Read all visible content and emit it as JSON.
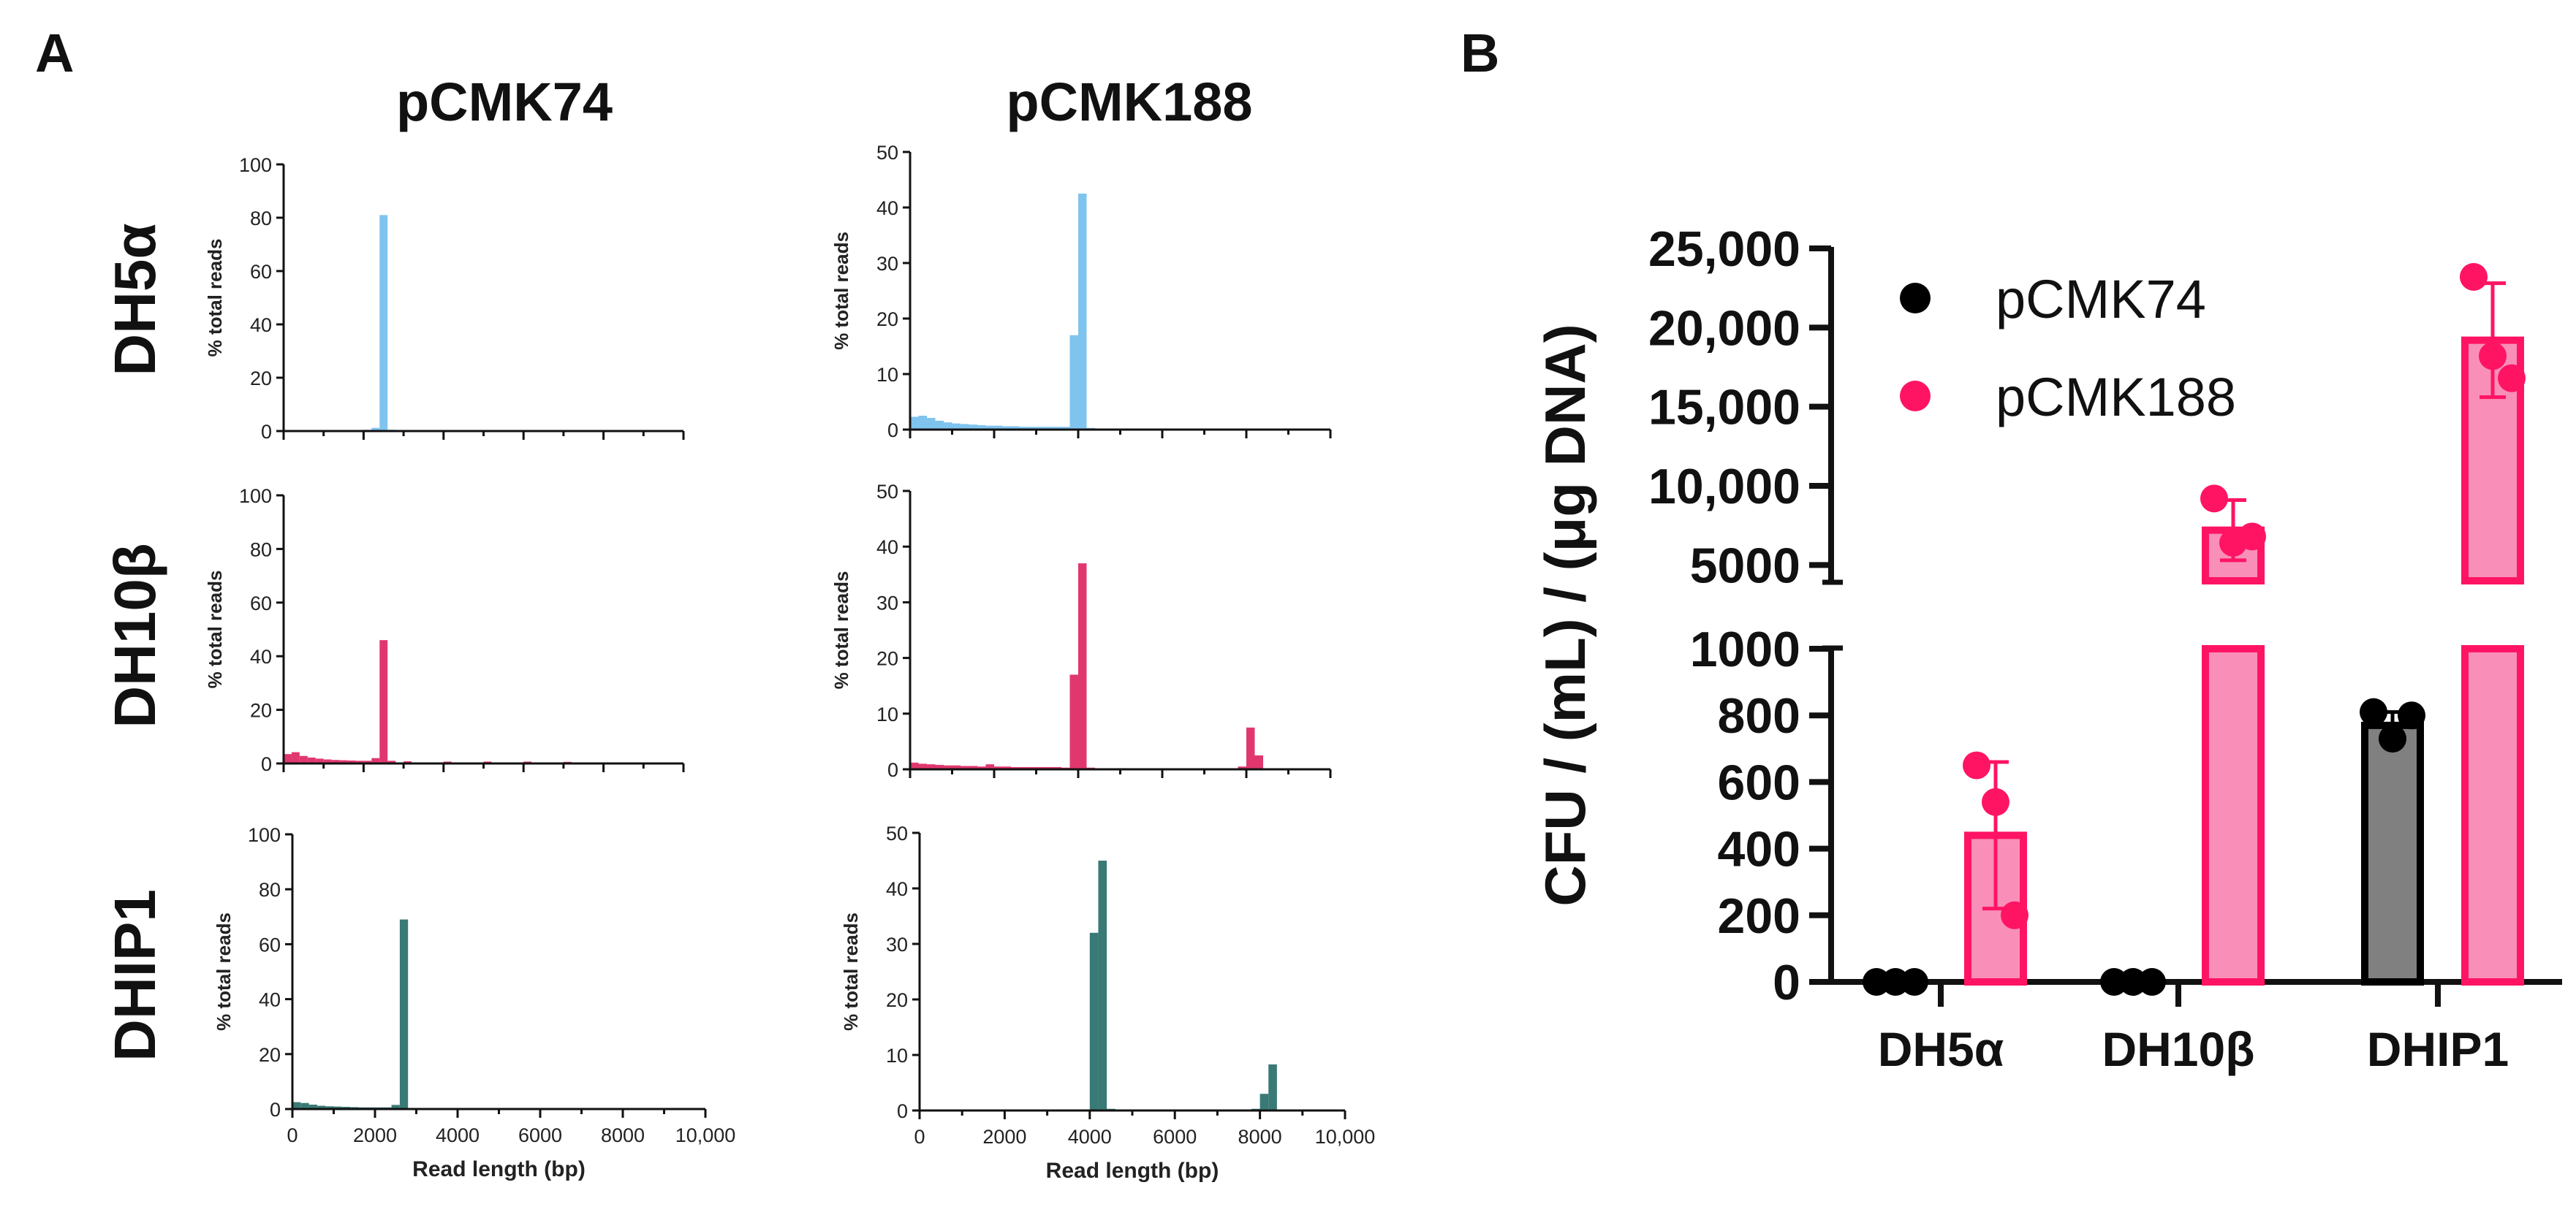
{
  "panels": {
    "a_letter": "A",
    "b_letter": "B"
  },
  "colors": {
    "dh5a": "#7fc4ee",
    "dh10b": "#e0386e",
    "dhip1": "#3a7a76",
    "pcmk74_bar": "#808080",
    "pcmk74_point": "#000000",
    "pcmk188_bar": "#f98fb8",
    "pcmk188_point": "#ff1464",
    "axis": "#111111"
  },
  "histograms": {
    "column_titles": [
      "pCMK74",
      "pCMK188"
    ],
    "row_labels": [
      "DH5α",
      "DH10β",
      "DHIP1"
    ],
    "y_axis_label": "% total reads",
    "x_axis_label": "Read length (bp)",
    "x_tick_labels": [
      "0",
      "2000",
      "4000",
      "6000",
      "8000",
      "10,000"
    ]
  },
  "chart_data": [
    {
      "type": "bar",
      "id": "DH5a-pCMK74",
      "row": "DH5α",
      "plasmid": "pCMK74",
      "color_key": "dh5a",
      "xlim": [
        0,
        10000
      ],
      "ylim": [
        0,
        100
      ],
      "y_ticks": [
        0,
        20,
        40,
        60,
        80,
        100
      ],
      "xlabel": "",
      "ylabel": "% total reads",
      "bin_width": 200,
      "x": [
        0,
        200,
        400,
        600,
        800,
        1000,
        1200,
        1400,
        1600,
        1800,
        2000,
        2200,
        2400,
        2600,
        3000,
        4000,
        5000,
        6000,
        7000,
        8000
      ],
      "values": [
        0.3,
        0.3,
        0.2,
        0.2,
        0.2,
        0.2,
        0.2,
        0.2,
        0.2,
        0.3,
        0.5,
        1.2,
        81,
        0.5,
        0.3,
        0.2,
        0.2,
        0.2,
        0.1,
        0
      ]
    },
    {
      "type": "bar",
      "id": "DH5a-pCMK188",
      "row": "DH5α",
      "plasmid": "pCMK188",
      "color_key": "dh5a",
      "xlim": [
        0,
        10000
      ],
      "ylim": [
        0,
        50
      ],
      "y_ticks": [
        0,
        10,
        20,
        30,
        40,
        50
      ],
      "xlabel": "",
      "ylabel": "% total reads",
      "bin_width": 200,
      "x": [
        0,
        200,
        400,
        600,
        800,
        1000,
        1200,
        1400,
        1600,
        1800,
        2000,
        2200,
        2400,
        2600,
        2800,
        3000,
        3200,
        3400,
        3600,
        3800,
        4000,
        4200,
        5000,
        6000,
        7000,
        8000,
        9000
      ],
      "values": [
        2.3,
        2.5,
        2.1,
        1.6,
        1.3,
        1.1,
        1.0,
        0.9,
        0.8,
        0.7,
        0.7,
        0.6,
        0.6,
        0.5,
        0.5,
        0.5,
        0.5,
        0.5,
        0.5,
        17,
        42.5,
        0.3,
        0.2,
        0.2,
        0.2,
        0.1,
        0.1
      ]
    },
    {
      "type": "bar",
      "id": "DH10b-pCMK74",
      "row": "DH10β",
      "plasmid": "pCMK74",
      "color_key": "dh10b",
      "xlim": [
        0,
        10000
      ],
      "ylim": [
        0,
        100
      ],
      "y_ticks": [
        0,
        20,
        40,
        60,
        80,
        100
      ],
      "xlabel": "",
      "ylabel": "% total reads",
      "bin_width": 200,
      "x": [
        0,
        200,
        400,
        600,
        800,
        1000,
        1200,
        1400,
        1600,
        1800,
        2000,
        2200,
        2400,
        2600,
        3000,
        4000,
        5000,
        6000,
        7000,
        8000
      ],
      "values": [
        3.5,
        4.2,
        2.8,
        2.2,
        1.8,
        1.5,
        1.3,
        1.2,
        1.1,
        1.0,
        1.0,
        2.0,
        46,
        1.0,
        0.8,
        0.7,
        0.7,
        0.7,
        0.6,
        0.3
      ]
    },
    {
      "type": "bar",
      "id": "DH10b-pCMK188",
      "row": "DH10β",
      "plasmid": "pCMK188",
      "color_key": "dh10b",
      "xlim": [
        0,
        10000
      ],
      "ylim": [
        0,
        50
      ],
      "y_ticks": [
        0,
        10,
        20,
        30,
        40,
        50
      ],
      "xlabel": "",
      "ylabel": "% total reads",
      "bin_width": 200,
      "x": [
        0,
        200,
        400,
        600,
        800,
        1000,
        1200,
        1400,
        1600,
        1800,
        2000,
        2200,
        2400,
        2600,
        2800,
        3000,
        3200,
        3400,
        3600,
        3800,
        4000,
        4200,
        5000,
        6000,
        7000,
        7800,
        8000,
        8200,
        9000
      ],
      "values": [
        1.2,
        1.0,
        0.9,
        0.8,
        0.7,
        0.7,
        0.6,
        0.6,
        0.5,
        0.9,
        0.5,
        0.5,
        0.4,
        0.4,
        0.4,
        0.4,
        0.4,
        0.4,
        0.3,
        17,
        37,
        0.3,
        0.2,
        0.2,
        0.2,
        0.5,
        7.5,
        2.5,
        0.1
      ]
    },
    {
      "type": "bar",
      "id": "DHIP1-pCMK74",
      "row": "DHIP1",
      "plasmid": "pCMK74",
      "color_key": "dhip1",
      "xlim": [
        0,
        10000
      ],
      "ylim": [
        0,
        100
      ],
      "y_ticks": [
        0,
        20,
        40,
        60,
        80,
        100
      ],
      "xlabel": "Read length (bp)",
      "ylabel": "% total reads",
      "bin_width": 200,
      "x": [
        0,
        200,
        400,
        600,
        800,
        1000,
        1200,
        1400,
        1600,
        1800,
        2000,
        2200,
        2400,
        2600,
        3000,
        4000,
        5000,
        6000,
        7000,
        8000,
        9000
      ],
      "values": [
        2.5,
        2.2,
        1.6,
        1.2,
        1.0,
        0.9,
        0.8,
        0.7,
        0.6,
        0.6,
        0.6,
        0.6,
        1.5,
        69,
        0.4,
        0.3,
        0.3,
        0.2,
        0.2,
        0.1,
        0.1
      ]
    },
    {
      "type": "bar",
      "id": "DHIP1-pCMK188",
      "row": "DHIP1",
      "plasmid": "pCMK188",
      "color_key": "dhip1",
      "xlim": [
        0,
        10000
      ],
      "ylim": [
        0,
        50
      ],
      "y_ticks": [
        0,
        10,
        20,
        30,
        40,
        50
      ],
      "xlabel": "Read length (bp)",
      "ylabel": "% total reads",
      "bin_width": 200,
      "x": [
        0,
        1000,
        2000,
        3000,
        4000,
        4200,
        4400,
        5000,
        6000,
        7000,
        7800,
        8000,
        8200,
        9000
      ],
      "values": [
        0.1,
        0.1,
        0.1,
        0.1,
        32,
        45,
        0.3,
        0.1,
        0.1,
        0.1,
        0.3,
        3.0,
        8.3,
        0.1
      ]
    },
    {
      "type": "bar",
      "id": "cfu-panel-b",
      "title": "",
      "xlabel": "",
      "ylabel": "CFU / (mL) / (μg DNA)",
      "categories": [
        "DH5α",
        "DH10β",
        "DHIP1"
      ],
      "axis_break": true,
      "lower_ylim": [
        0,
        1000
      ],
      "lower_ticks": [
        0,
        200,
        400,
        600,
        800,
        1000
      ],
      "lower_tick_labels": [
        "0",
        "200",
        "400",
        "600",
        "800",
        "1000"
      ],
      "upper_ylim": [
        4000,
        25000
      ],
      "upper_ticks": [
        5000,
        10000,
        15000,
        20000,
        25000
      ],
      "upper_tick_labels": [
        "5000",
        "10,000",
        "15,000",
        "20,000",
        "25,000"
      ],
      "legend_position": "top-left",
      "series": [
        {
          "name": "pCMK74",
          "values": [
            0,
            0,
            770
          ],
          "error": [
            0,
            0,
            40
          ],
          "points": [
            [
              0,
              0,
              0
            ],
            [
              0,
              0,
              0
            ],
            [
              810,
              730,
              800
            ]
          ]
        },
        {
          "name": "pCMK188",
          "values": [
            440,
            7200,
            19200
          ],
          "error": [
            220,
            1900,
            3600
          ],
          "points": [
            [
              650,
              540,
              200
            ],
            [
              9200,
              6400,
              6800
            ],
            [
              23200,
              18200,
              16800
            ]
          ]
        }
      ]
    }
  ]
}
